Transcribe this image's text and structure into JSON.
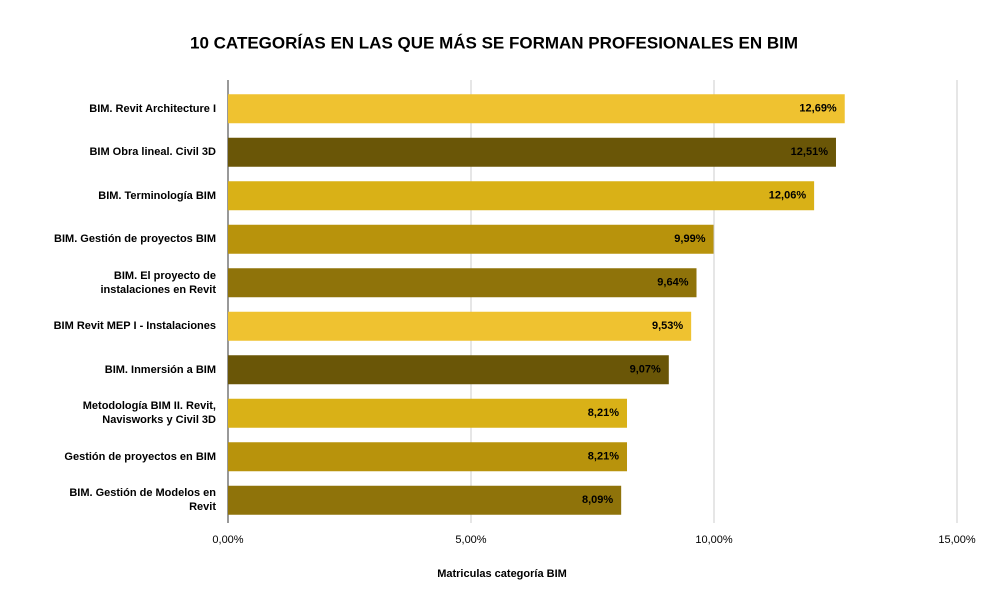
{
  "chart_data": {
    "type": "hbar",
    "title": "10 CATEGORÍAS EN LAS QUE MÁS SE FORMAN PROFESIONALES EN BIM",
    "x_label": "Matriculas categoría BIM",
    "categories": [
      "BIM. Revit Architecture I",
      "BIM Obra lineal. Civil 3D",
      "BIM. Terminología BIM",
      "BIM. Gestión de proyectos BIM",
      "BIM. El proyecto de\ninstalaciones en Revit",
      "BIM Revit MEP I - Instalaciones",
      "BIM. Inmersión a BIM",
      "Metodología BIM II. Revit,\nNavisworks y Civil 3D",
      "Gestión de proyectos en BIM",
      "BIM. Gestión de Modelos en\nRevit"
    ],
    "values": [
      12.69,
      12.51,
      12.06,
      9.99,
      9.64,
      9.53,
      9.07,
      8.21,
      8.21,
      8.09
    ],
    "value_labels": [
      "12,69%",
      "12,51%",
      "12,06%",
      "9,99%",
      "9,64%",
      "9,53%",
      "9,07%",
      "8,21%",
      "8,21%",
      "8,09%"
    ],
    "colors": [
      "#efc230",
      "#6a5607",
      "#d9b117",
      "#b8930c",
      "#8f730a",
      "#efc230",
      "#6a5607",
      "#d9b117",
      "#b8930c",
      "#8f730a"
    ],
    "xlim": [
      0,
      15
    ],
    "xticks": [
      {
        "value": 0,
        "label": "0,00%"
      },
      {
        "value": 5,
        "label": "5,00%"
      },
      {
        "value": 10,
        "label": "10,00%"
      },
      {
        "value": 15,
        "label": "15,00%"
      }
    ],
    "grid": true
  }
}
